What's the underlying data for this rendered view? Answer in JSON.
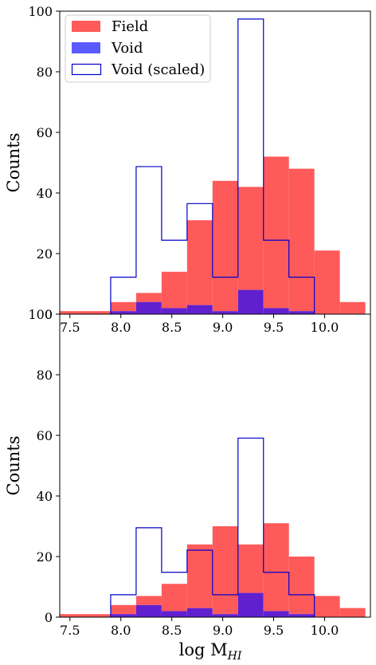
{
  "chart_data": [
    {
      "type": "bar",
      "bin_edges": [
        7.4,
        7.9,
        8.15,
        8.4,
        8.65,
        8.9,
        9.15,
        9.4,
        9.65,
        9.9,
        10.15,
        10.4
      ],
      "xlim": [
        7.4,
        10.45
      ],
      "ylim": [
        0,
        100
      ],
      "xticks": [
        "7.5",
        "8.0",
        "8.5",
        "9.0",
        "9.5",
        "10.0"
      ],
      "yticks": [
        "0",
        "20",
        "40",
        "60",
        "80",
        "100"
      ],
      "xlabel": "",
      "ylabel": "Counts",
      "legend": {
        "placement": "top-left",
        "entries": [
          {
            "label": "Field",
            "style": "filled",
            "color": "#ff5a5a"
          },
          {
            "label": "Void",
            "style": "filled",
            "color": "#5a5aff"
          },
          {
            "label": "Void (scaled)",
            "style": "step",
            "color": "#0000cc"
          }
        ]
      },
      "series": [
        {
          "name": "Field",
          "style": "filled",
          "color": "#ff5a5a",
          "values": [
            1,
            4,
            7,
            14,
            31,
            44,
            42,
            52,
            48,
            21,
            4
          ]
        },
        {
          "name": "Void",
          "style": "filled",
          "color": "#5a5aff",
          "values": [
            0,
            1,
            4,
            2,
            3,
            1,
            8,
            2,
            1,
            0,
            0
          ]
        },
        {
          "name": "Void (scaled)",
          "style": "step",
          "color": "#0000cc",
          "values": [
            0,
            12.2,
            48.7,
            24.4,
            36.5,
            12.2,
            97.4,
            24.4,
            12.2,
            0,
            0
          ]
        }
      ]
    },
    {
      "type": "bar",
      "bin_edges": [
        7.4,
        7.9,
        8.15,
        8.4,
        8.65,
        8.9,
        9.15,
        9.4,
        9.65,
        9.9,
        10.15,
        10.4
      ],
      "xlim": [
        7.4,
        10.45
      ],
      "ylim": [
        0,
        100
      ],
      "xticks": [
        "7.5",
        "8.0",
        "8.5",
        "9.0",
        "9.5",
        "10.0"
      ],
      "yticks": [
        "0",
        "20",
        "40",
        "60",
        "80",
        "100"
      ],
      "xlabel": "log M",
      "xlabel_sub": "HI",
      "ylabel": "Counts",
      "series": [
        {
          "name": "Field",
          "style": "filled",
          "color": "#ff5a5a",
          "values": [
            1,
            4,
            7,
            11,
            24,
            30,
            24,
            31,
            20,
            7,
            3
          ]
        },
        {
          "name": "Void",
          "style": "filled",
          "color": "#5a5aff",
          "values": [
            0,
            1,
            4,
            2,
            3,
            1,
            8,
            2,
            1,
            0,
            0
          ]
        },
        {
          "name": "Void (scaled)",
          "style": "step",
          "color": "#0000cc",
          "values": [
            0,
            7.4,
            29.5,
            14.8,
            22.1,
            7.4,
            59.1,
            14.8,
            7.4,
            0,
            0
          ]
        }
      ]
    }
  ],
  "colors": {
    "overlap": "#6020d0",
    "axis": "#000000"
  }
}
